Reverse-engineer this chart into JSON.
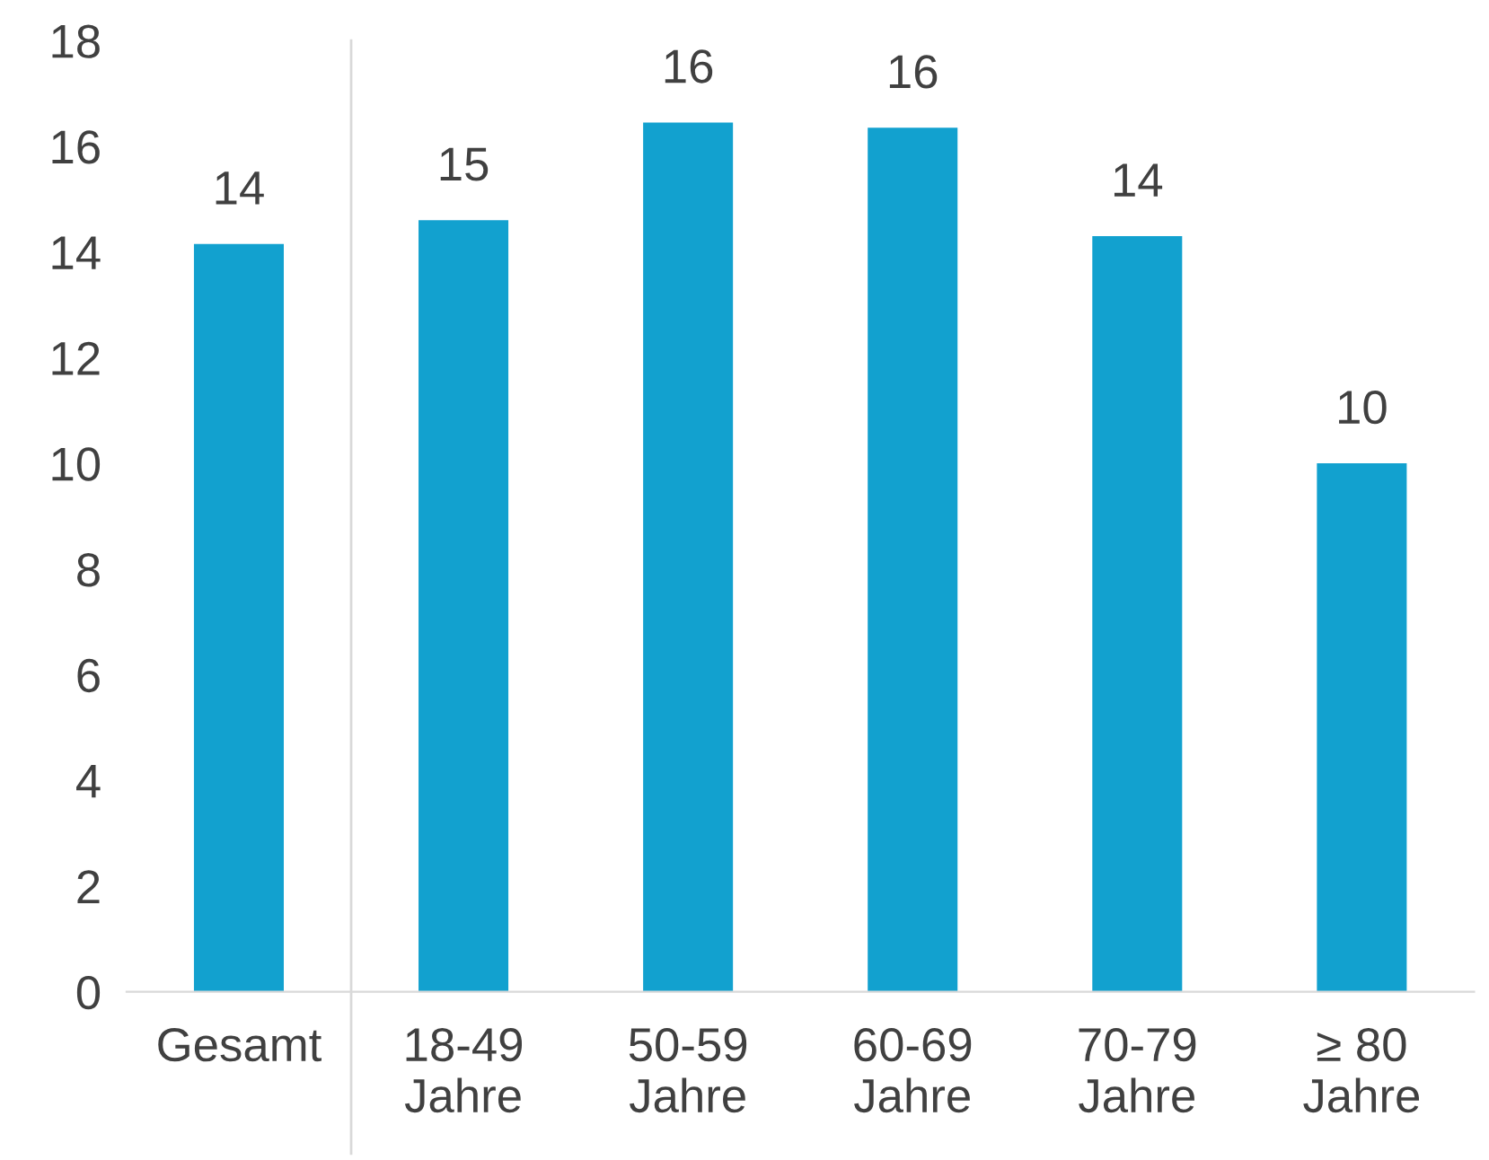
{
  "chart_data": {
    "type": "bar",
    "categories": [
      "Gesamt",
      "18-49\nJahre",
      "50-59\nJahre",
      "60-69\nJahre",
      "70-79\nJahre",
      "≥ 80\nJahre"
    ],
    "values": [
      14.15,
      14.6,
      16.45,
      16.35,
      14.3,
      10.0
    ],
    "value_labels": [
      "14",
      "15",
      "16",
      "16",
      "14",
      "10"
    ],
    "color": "#12a1cf",
    "ylim": [
      0,
      18
    ],
    "yticks": [
      0,
      2,
      4,
      6,
      8,
      10,
      12,
      14,
      16,
      18
    ],
    "grid": false
  }
}
